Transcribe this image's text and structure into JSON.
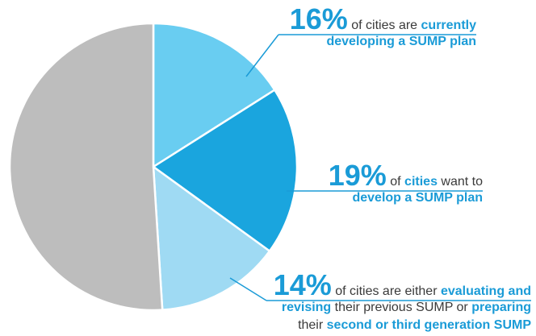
{
  "chart_data": {
    "type": "pie",
    "values": [
      16,
      19,
      14,
      51
    ],
    "value_labels": [
      "16%",
      "19%",
      "14%",
      null
    ],
    "colors": [
      "#69cdf1",
      "#1aa5de",
      "#9fdaf3",
      "#bdbdbd"
    ],
    "annotations": [
      {
        "lines": [
          [
            {
              "text": "of cities are ",
              "bold": false
            },
            {
              "text": "currently",
              "bold": true
            }
          ],
          [
            {
              "text": "developing a SUMP plan",
              "bold": true
            }
          ]
        ]
      },
      {
        "lines": [
          [
            {
              "text": "of ",
              "bold": false
            },
            {
              "text": "cities",
              "bold": true
            },
            {
              "text": " want to",
              "bold": false
            }
          ],
          [
            {
              "text": "develop a SUMP plan",
              "bold": true
            }
          ]
        ]
      },
      {
        "lines": [
          [
            {
              "text": "of cities are either ",
              "bold": false
            },
            {
              "text": "evaluating and",
              "bold": true
            }
          ],
          [
            {
              "text": "revising",
              "bold": true
            },
            {
              "text": " their previous SUMP or ",
              "bold": false
            },
            {
              "text": "preparing",
              "bold": true
            }
          ],
          [
            {
              "text": "their ",
              "bold": false
            },
            {
              "text": "second or third generation SUMP",
              "bold": true
            }
          ]
        ]
      }
    ]
  }
}
